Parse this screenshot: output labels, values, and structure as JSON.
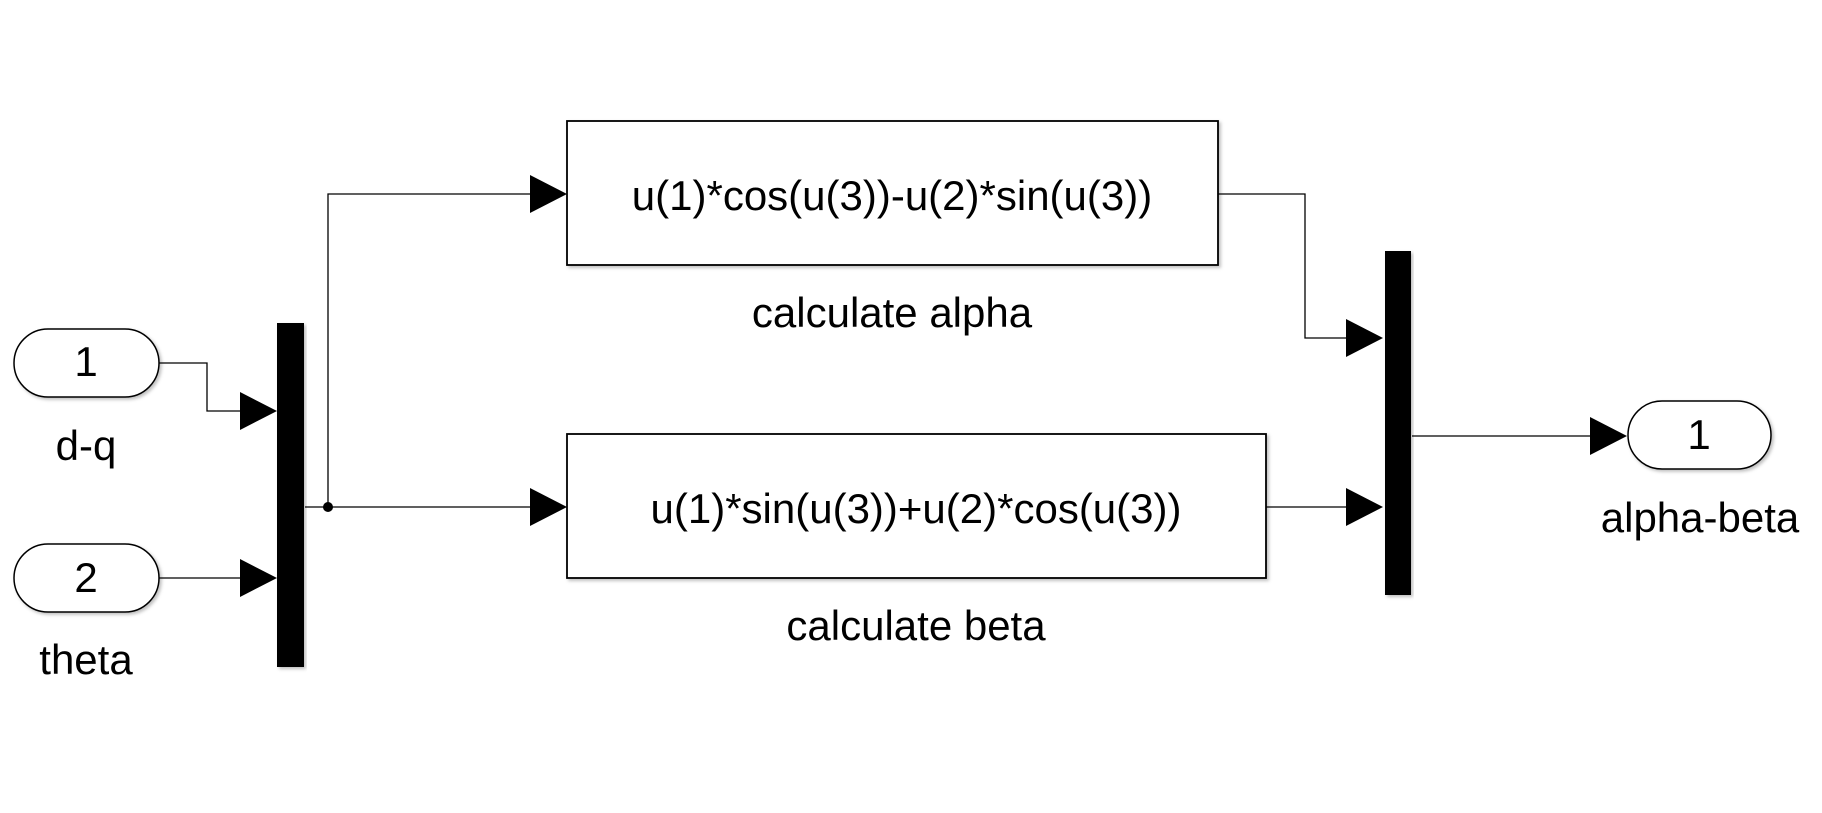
{
  "inports": [
    {
      "number": "1",
      "name": "d-q"
    },
    {
      "number": "2",
      "name": "theta"
    }
  ],
  "fcn_blocks": [
    {
      "expression": "u(1)*cos(u(3))-u(2)*sin(u(3))",
      "name": "calculate alpha"
    },
    {
      "expression": "u(1)*sin(u(3))+u(2)*cos(u(3))",
      "name": "calculate beta"
    }
  ],
  "outport": {
    "number": "1",
    "name": "alpha-beta"
  }
}
